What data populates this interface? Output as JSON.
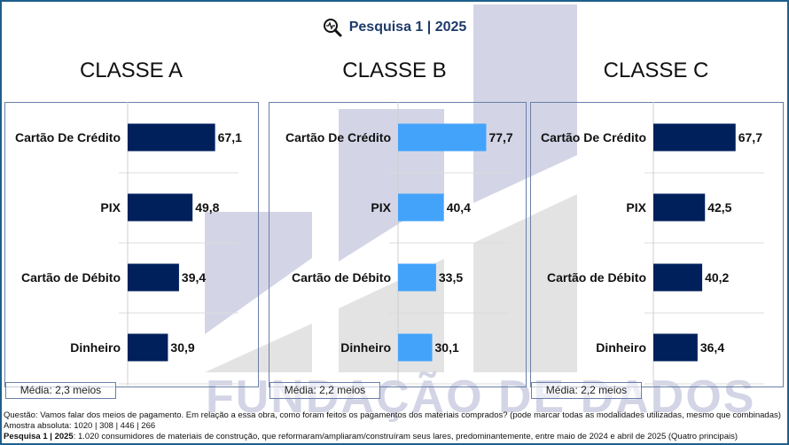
{
  "header": {
    "icon": "search-pulse-icon",
    "title": "Pesquisa 1 | 2025"
  },
  "watermark": {
    "text": "FUNDAÇÃO DE DADOS",
    "colors": {
      "lavender": "#d3d5e6",
      "gray": "#e3e3e3"
    }
  },
  "colors": {
    "dark_bar": "#00205b",
    "highlight_bar": "#43a3fb",
    "frame": "#1f5f8b",
    "title": "#1e3a6b"
  },
  "chart_data": [
    {
      "type": "bar",
      "orientation": "horizontal",
      "title": "CLASSE A",
      "categories": [
        "Cartão De Crédito",
        "PIX",
        "Cartão de Débito",
        "Dinheiro"
      ],
      "values": [
        67.1,
        49.8,
        39.4,
        30.9
      ],
      "labels": [
        "67,1",
        "49,8",
        "39,4",
        "30,9"
      ],
      "bar_color": "#00205b",
      "xlim": [
        0,
        100
      ],
      "grid": true,
      "note": "Média: 2,3 meios"
    },
    {
      "type": "bar",
      "orientation": "horizontal",
      "title": "CLASSE B",
      "categories": [
        "Cartão De Crédito",
        "PIX",
        "Cartão de Débito",
        "Dinheiro"
      ],
      "values": [
        77.7,
        40.4,
        33.5,
        30.1
      ],
      "labels": [
        "77,7",
        "40,4",
        "33,5",
        "30,1"
      ],
      "bar_color": "#43a3fb",
      "xlim": [
        0,
        100
      ],
      "grid": true,
      "note": "Média: 2,2 meios"
    },
    {
      "type": "bar",
      "orientation": "horizontal",
      "title": "CLASSE C",
      "categories": [
        "Cartão De Crédito",
        "PIX",
        "Cartão de Débito",
        "Dinheiro"
      ],
      "values": [
        67.7,
        42.5,
        40.2,
        36.4
      ],
      "labels": [
        "67,7",
        "42,5",
        "40,2",
        "36,4"
      ],
      "bar_color": "#00205b",
      "xlim": [
        0,
        100
      ],
      "grid": true,
      "note": "Média: 2,2 meios"
    }
  ],
  "footer": {
    "question": "Questão: Vamos falar dos meios de pagamento. Em relação a essa obra, como foram feitos os pagamentos dos materiais comprados? (pode marcar todas as modalidades utilizadas, mesmo que combinadas)",
    "sample": "Amostra absoluta: 1020 | 308 | 446 | 266",
    "survey_bold": "Pesquisa 1 | 2025",
    "survey_rest": ": 1.020 consumidores de materiais de construção, que reformaram/ampliaram/construíram seus lares, predominantemente, entre maio de 2024 e abril de 2025 (Quatro principais)"
  }
}
